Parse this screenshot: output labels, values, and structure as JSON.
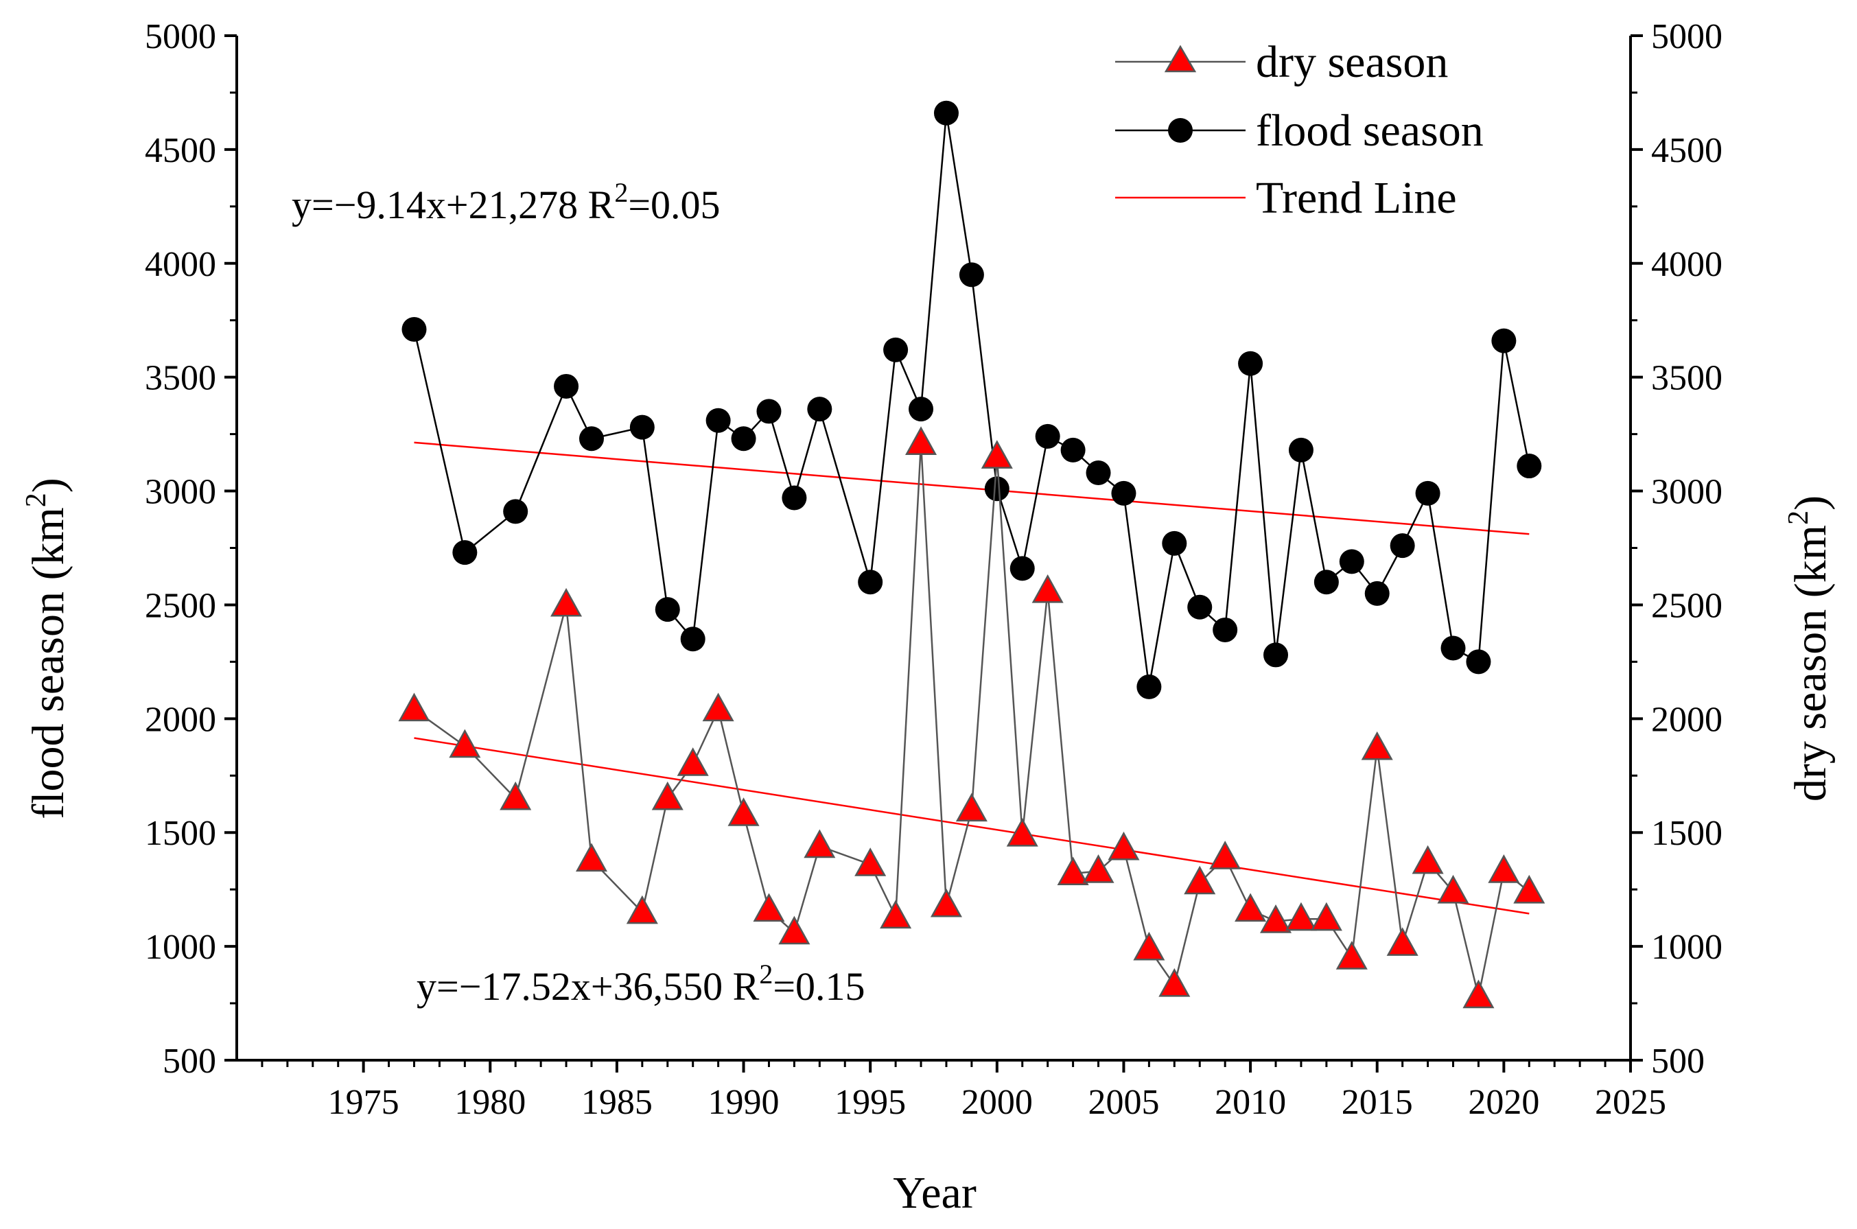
{
  "chart_data": {
    "type": "line",
    "xlabel": "Year",
    "ylabel_left": "flood season (km",
    "ylabel_right": "dry season (km",
    "ylabel_sup": "2",
    "xlim": [
      1970,
      2025
    ],
    "ylim": [
      500,
      5000
    ],
    "x_ticks": [
      "1975",
      "1980",
      "1985",
      "1990",
      "1995",
      "2000",
      "2005",
      "2010",
      "2015",
      "2020",
      "2025"
    ],
    "y_ticks": [
      "500",
      "1000",
      "1500",
      "2000",
      "2500",
      "3000",
      "3500",
      "4000",
      "4500",
      "5000"
    ],
    "legend": {
      "position": "top-right",
      "dry_label": "dry season",
      "flood_label": "flood season",
      "trend_label": "Trend Line"
    },
    "colors": {
      "dry_marker": "#ff0000",
      "dry_line": "#555555",
      "flood_marker": "#000000",
      "trend": "#ff0000"
    },
    "annotations": {
      "flood": {
        "prefix": "y=−9.14x+21,278   R",
        "sup": "2",
        "suffix": "=0.05"
      },
      "dry": {
        "prefix": "y=−17.52x+36,550   R",
        "sup": "2",
        "suffix": "=0.15"
      }
    },
    "series": [
      {
        "name": "flood season",
        "x": [
          1977,
          1979,
          1981,
          1983,
          1984,
          1986,
          1987,
          1988,
          1989,
          1990,
          1991,
          1992,
          1993,
          1995,
          1996,
          1997,
          1998,
          1999,
          2000,
          2001,
          2002,
          2003,
          2004,
          2005,
          2006,
          2007,
          2008,
          2009,
          2010,
          2011,
          2012,
          2013,
          2014,
          2015,
          2016,
          2017,
          2018,
          2019,
          2020,
          2021
        ],
        "values": [
          3710,
          2730,
          2910,
          3460,
          3230,
          3280,
          2480,
          2350,
          3310,
          3230,
          3350,
          2970,
          3360,
          2600,
          3620,
          3360,
          4660,
          3950,
          3010,
          2660,
          3240,
          3180,
          3080,
          2990,
          2140,
          2770,
          2490,
          2390,
          3560,
          2280,
          3180,
          2600,
          2690,
          2550,
          2760,
          2990,
          2310,
          2250,
          3660,
          3110
        ],
        "trend": {
          "x": [
            1977,
            2021
          ],
          "y": [
            3213,
            2811
          ]
        }
      },
      {
        "name": "dry season",
        "x": [
          1977,
          1979,
          1981,
          1983,
          1984,
          1986,
          1987,
          1988,
          1989,
          1990,
          1991,
          1992,
          1993,
          1995,
          1996,
          1997,
          1998,
          1999,
          2000,
          2001,
          2002,
          2003,
          2004,
          2005,
          2006,
          2007,
          2008,
          2009,
          2010,
          2011,
          2012,
          2013,
          2014,
          2015,
          2016,
          2017,
          2018,
          2019,
          2020,
          2021
        ],
        "values": [
          2040,
          1880,
          1650,
          2500,
          1380,
          1150,
          1650,
          1800,
          2040,
          1580,
          1160,
          1060,
          1440,
          1360,
          1130,
          3210,
          1180,
          1600,
          3150,
          1490,
          2560,
          1320,
          1330,
          1430,
          990,
          830,
          1280,
          1390,
          1160,
          1110,
          1120,
          1120,
          950,
          1870,
          1010,
          1370,
          1240,
          780,
          1330,
          1240
        ],
        "trend": {
          "x": [
            1977,
            2021
          ],
          "y": [
            1915,
            1144
          ]
        }
      }
    ]
  }
}
